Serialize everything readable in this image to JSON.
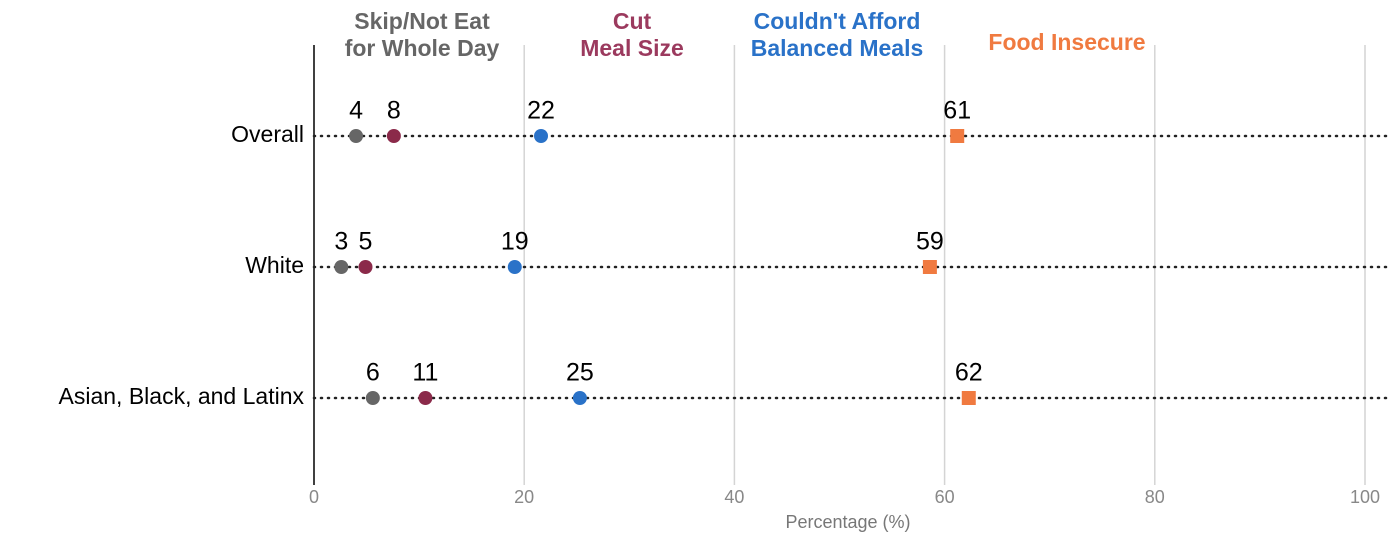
{
  "chart_data": {
    "type": "dot",
    "categories": [
      "Overall",
      "White",
      "Asian, Black, and Latinx"
    ],
    "series": [
      {
        "name": "Skip/Not Eat\nfor Whole Day",
        "color": "#666666",
        "marker": "circle",
        "values": [
          4.0,
          2.6,
          5.6
        ],
        "value_labels": [
          "4",
          "3",
          "6"
        ]
      },
      {
        "name": "Cut\nMeal Size",
        "color": "#8b2a4a",
        "marker": "circle",
        "values": [
          7.6,
          4.9,
          10.6
        ],
        "value_labels": [
          "8",
          "5",
          "11"
        ]
      },
      {
        "name": "Couldn't Afford\nBalanced Meals",
        "color": "#2a72c8",
        "marker": "circle",
        "values": [
          21.6,
          19.1,
          25.3
        ],
        "value_labels": [
          "22",
          "19",
          "25"
        ]
      },
      {
        "name": "Food Insecure",
        "color": "#f07a40",
        "marker": "square",
        "values": [
          61.2,
          58.6,
          62.3
        ],
        "value_labels": [
          "61",
          "59",
          "62"
        ]
      }
    ],
    "xlabel": "Percentage (%)",
    "xlim": [
      0,
      100
    ],
    "xticks": [
      0,
      20,
      40,
      60,
      80,
      100
    ],
    "grid": true
  }
}
